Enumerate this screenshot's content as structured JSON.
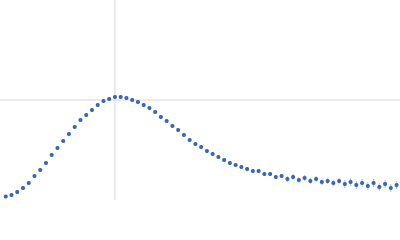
{
  "chart_data": {
    "type": "scatter",
    "color": "#3a66b5",
    "error_color": "#a9bde3",
    "grid": true,
    "xlim": [
      0,
      3.48
    ],
    "ylim": [
      0,
      2
    ],
    "xticks": [
      1
    ],
    "yticks": [
      1
    ],
    "x": [
      0.05,
      0.1,
      0.15,
      0.2,
      0.25,
      0.3,
      0.35,
      0.4,
      0.45,
      0.5,
      0.55,
      0.6,
      0.65,
      0.7,
      0.75,
      0.8,
      0.85,
      0.9,
      0.95,
      1.0,
      1.05,
      1.1,
      1.15,
      1.2,
      1.25,
      1.3,
      1.35,
      1.4,
      1.45,
      1.5,
      1.55,
      1.6,
      1.65,
      1.7,
      1.75,
      1.8,
      1.85,
      1.9,
      1.95,
      2.0,
      2.05,
      2.1,
      2.15,
      2.2,
      2.25,
      2.3,
      2.35,
      2.4,
      2.45,
      2.5,
      2.55,
      2.6,
      2.65,
      2.7,
      2.75,
      2.8,
      2.85,
      2.9,
      2.95,
      3.0,
      3.05,
      3.1,
      3.15,
      3.2,
      3.25,
      3.3,
      3.35,
      3.4,
      3.45
    ],
    "series": [
      {
        "color": "#3a66b5",
        "values": [
          0.035,
          0.05,
          0.08,
          0.12,
          0.17,
          0.24,
          0.3,
          0.37,
          0.45,
          0.52,
          0.59,
          0.66,
          0.73,
          0.8,
          0.85,
          0.9,
          0.95,
          0.99,
          1.01,
          1.03,
          1.03,
          1.02,
          1.0,
          0.98,
          0.95,
          0.92,
          0.88,
          0.83,
          0.79,
          0.74,
          0.7,
          0.65,
          0.6,
          0.56,
          0.53,
          0.49,
          0.46,
          0.43,
          0.4,
          0.37,
          0.35,
          0.33,
          0.31,
          0.29,
          0.29,
          0.26,
          0.26,
          0.23,
          0.24,
          0.21,
          0.23,
          0.2,
          0.22,
          0.19,
          0.21,
          0.18,
          0.19,
          0.17,
          0.19,
          0.16,
          0.18,
          0.15,
          0.17,
          0.14,
          0.17,
          0.13,
          0.16,
          0.12,
          0.15
        ],
        "errors": [
          0.005,
          0.005,
          0.005,
          0.005,
          0.005,
          0.005,
          0.005,
          0.005,
          0.005,
          0.005,
          0.005,
          0.005,
          0.005,
          0.005,
          0.005,
          0.005,
          0.005,
          0.005,
          0.005,
          0.01,
          0.01,
          0.01,
          0.01,
          0.01,
          0.01,
          0.01,
          0.01,
          0.01,
          0.01,
          0.01,
          0.01,
          0.01,
          0.01,
          0.01,
          0.01,
          0.01,
          0.01,
          0.01,
          0.01,
          0.02,
          0.02,
          0.02,
          0.02,
          0.02,
          0.02,
          0.02,
          0.02,
          0.02,
          0.02,
          0.03,
          0.03,
          0.03,
          0.03,
          0.03,
          0.03,
          0.03,
          0.03,
          0.03,
          0.03,
          0.04,
          0.04,
          0.04,
          0.04,
          0.04,
          0.04,
          0.04,
          0.04,
          0.04,
          0.04
        ]
      }
    ]
  }
}
